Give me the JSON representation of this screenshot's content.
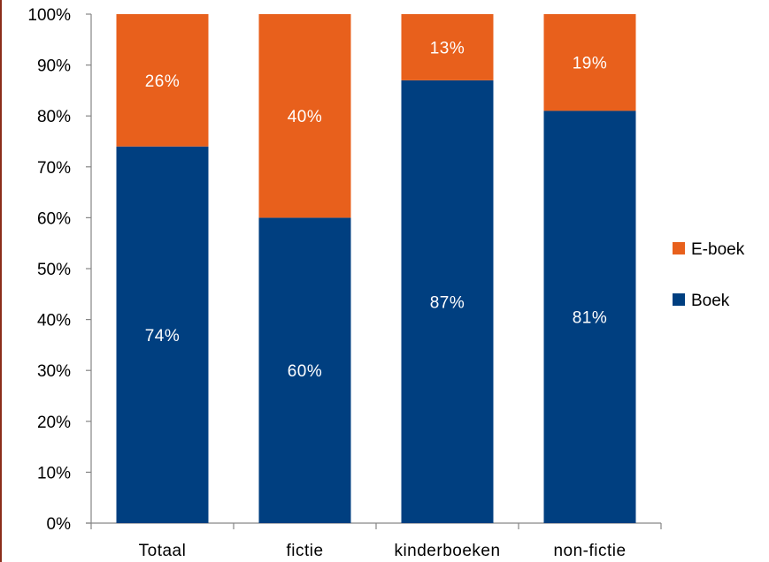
{
  "chart_data": {
    "type": "bar",
    "stacked": true,
    "title": "",
    "xlabel": "",
    "ylabel": "",
    "ylim": [
      0,
      100
    ],
    "y_ticks": [
      "0%",
      "10%",
      "20%",
      "30%",
      "40%",
      "50%",
      "60%",
      "70%",
      "80%",
      "90%",
      "100%"
    ],
    "categories": [
      "Totaal",
      "fictie",
      "kinderboeken",
      "non-fictie"
    ],
    "series": [
      {
        "name": "Boek",
        "color": "#003f80",
        "values": [
          74,
          60,
          87,
          81
        ],
        "labels": [
          "74%",
          "60%",
          "87%",
          "81%"
        ]
      },
      {
        "name": "E-boek",
        "color": "#e8601c",
        "values": [
          26,
          40,
          13,
          19
        ],
        "labels": [
          "26%",
          "40%",
          "13%",
          "19%"
        ]
      }
    ],
    "legend": {
      "position": "right",
      "order": [
        "E-boek",
        "Boek"
      ]
    },
    "grid": false
  }
}
